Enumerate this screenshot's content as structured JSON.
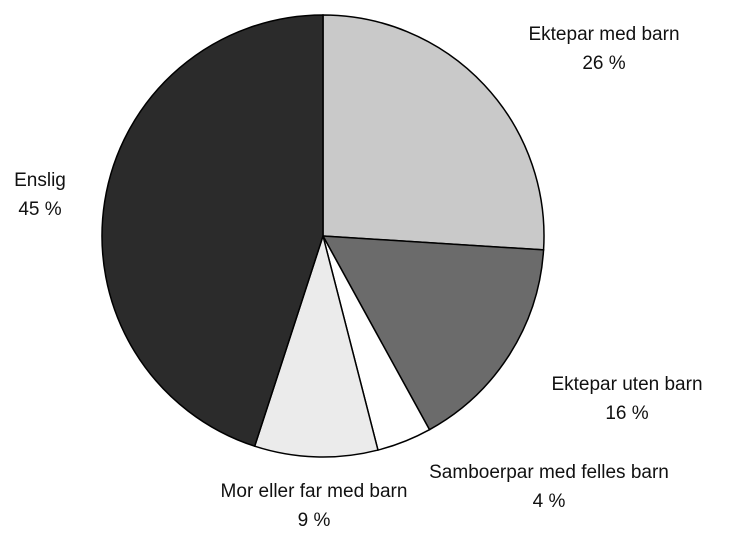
{
  "chart_data": {
    "type": "pie",
    "categories": [
      "Ektepar med barn",
      "Ektepar uten barn",
      "Samboerpar med felles barn",
      "Mor eller far med barn",
      "Enslig"
    ],
    "values": [
      26,
      16,
      4,
      9,
      45
    ],
    "value_labels": [
      "26 %",
      "16 %",
      "4 %",
      "9 %",
      "45 %"
    ],
    "colors": [
      "#c9c9c9",
      "#6b6b6b",
      "#ffffff",
      "#ebebeb",
      "#2b2b2b"
    ]
  }
}
